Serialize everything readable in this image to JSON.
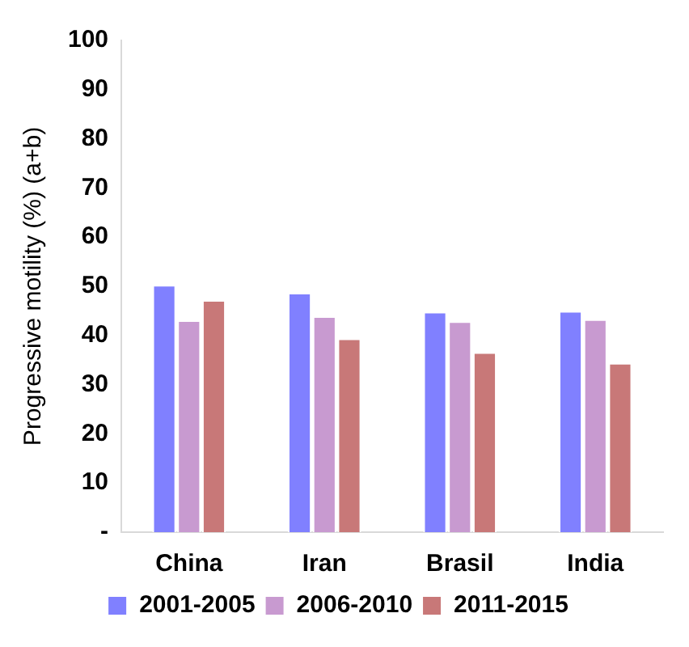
{
  "chart_data": {
    "type": "bar",
    "ylabel": "Progressive motility (%) (a+b)",
    "categories": [
      "China",
      "Iran",
      "Brasil",
      "India"
    ],
    "series": [
      {
        "name": "2001-2005",
        "color": "#8080ff",
        "values": [
          50.3,
          48.7,
          44.8,
          45.0
        ]
      },
      {
        "name": "2006-2010",
        "color": "#c89ad0",
        "values": [
          43.1,
          43.9,
          42.9,
          43.3
        ]
      },
      {
        "name": "2011-2015",
        "color": "#c87878",
        "values": [
          47.2,
          39.4,
          36.6,
          34.4
        ]
      }
    ],
    "ylim": [
      0,
      100
    ],
    "yticks": [
      {
        "value": 0,
        "label": "-"
      },
      10,
      20,
      30,
      40,
      50,
      60,
      70,
      80,
      90,
      100
    ],
    "grid": false,
    "legend": "bottom"
  }
}
